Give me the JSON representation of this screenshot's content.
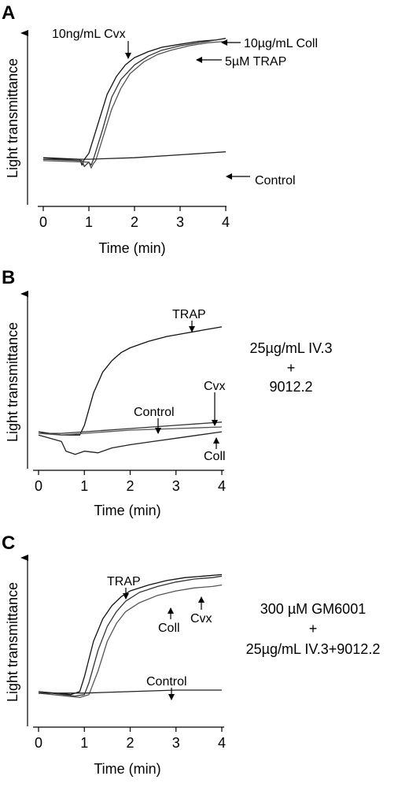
{
  "chart_data": [
    {
      "panel": "A",
      "type": "line",
      "xlabel": "Time (min)",
      "ylabel": "Light transmittance",
      "xlim": [
        0,
        4
      ],
      "xticks": [
        "0",
        "1",
        "2",
        "3",
        "4"
      ],
      "series": [
        {
          "name": "10ng/mL Cvx",
          "x": [
            0,
            0.8,
            0.85,
            0.9,
            1.0,
            1.2,
            1.4,
            1.6,
            1.8,
            2.0,
            2.3,
            2.6,
            3.0,
            3.4,
            3.8,
            4.0
          ],
          "y": [
            0.17,
            0.16,
            0.12,
            0.16,
            0.2,
            0.4,
            0.6,
            0.72,
            0.8,
            0.85,
            0.89,
            0.92,
            0.94,
            0.96,
            0.97,
            0.98
          ]
        },
        {
          "name": "10µg/mL Coll",
          "x": [
            0,
            0.85,
            0.9,
            1.0,
            1.05,
            1.1,
            1.3,
            1.5,
            1.7,
            2.0,
            2.3,
            2.6,
            3.0,
            3.4,
            3.8,
            4.0
          ],
          "y": [
            0.16,
            0.15,
            0.11,
            0.14,
            0.12,
            0.16,
            0.36,
            0.58,
            0.7,
            0.8,
            0.86,
            0.9,
            0.93,
            0.95,
            0.97,
            0.98
          ]
        },
        {
          "name": "5µM TRAP",
          "x": [
            0,
            1.0,
            1.05,
            1.1,
            1.15,
            1.3,
            1.5,
            1.7,
            1.9,
            2.2,
            2.5,
            2.8,
            3.2,
            3.6,
            4.0
          ],
          "y": [
            0.15,
            0.14,
            0.1,
            0.13,
            0.15,
            0.3,
            0.5,
            0.64,
            0.74,
            0.82,
            0.87,
            0.9,
            0.93,
            0.95,
            0.96
          ]
        },
        {
          "name": "Control",
          "x": [
            0,
            1,
            2,
            3,
            4
          ],
          "y": [
            0.16,
            0.16,
            0.17,
            0.19,
            0.21
          ]
        }
      ],
      "annotations": [
        {
          "text": "10ng/mL Cvx",
          "target": "10ng/mL Cvx"
        },
        {
          "text": "10µg/mL Coll",
          "target": "10µg/mL Coll"
        },
        {
          "text": "5µM TRAP",
          "target": "5µM TRAP"
        },
        {
          "text": "Control",
          "target": "Control"
        }
      ]
    },
    {
      "panel": "B",
      "type": "line",
      "xlabel": "Time (min)",
      "ylabel": "Light transmittance",
      "xlim": [
        0,
        4
      ],
      "xticks": [
        "0",
        "1",
        "2",
        "3",
        "4"
      ],
      "side_note": [
        "25µg/mL IV.3",
        "+",
        "9012.2"
      ],
      "series": [
        {
          "name": "TRAP",
          "x": [
            0,
            0.5,
            0.9,
            1.0,
            1.2,
            1.4,
            1.6,
            1.8,
            2.0,
            2.4,
            2.8,
            3.2,
            3.6,
            4.0
          ],
          "y": [
            0.18,
            0.16,
            0.16,
            0.22,
            0.42,
            0.55,
            0.62,
            0.67,
            0.7,
            0.74,
            0.77,
            0.79,
            0.81,
            0.83
          ]
        },
        {
          "name": "Cvx",
          "x": [
            0,
            0.5,
            1,
            2,
            3,
            4
          ],
          "y": [
            0.17,
            0.17,
            0.18,
            0.2,
            0.22,
            0.24
          ]
        },
        {
          "name": "Control",
          "x": [
            0,
            0.5,
            1,
            2,
            3,
            4
          ],
          "y": [
            0.17,
            0.16,
            0.17,
            0.19,
            0.2,
            0.21
          ]
        },
        {
          "name": "Coll",
          "x": [
            0,
            0.5,
            0.6,
            0.8,
            1.0,
            1.3,
            1.6,
            2.0,
            2.5,
            3.0,
            3.5,
            4.0
          ],
          "y": [
            0.16,
            0.12,
            0.06,
            0.04,
            0.06,
            0.05,
            0.08,
            0.1,
            0.12,
            0.14,
            0.16,
            0.18
          ]
        }
      ],
      "annotations": [
        {
          "text": "TRAP",
          "target": "TRAP"
        },
        {
          "text": "Control",
          "target": "Control"
        },
        {
          "text": "Cvx",
          "target": "Cvx"
        },
        {
          "text": "Coll",
          "target": "Coll"
        }
      ]
    },
    {
      "panel": "C",
      "type": "line",
      "xlabel": "Time (min)",
      "ylabel": "Light transmittance",
      "xlim": [
        0,
        4
      ],
      "xticks": [
        "0",
        "1",
        "2",
        "3",
        "4"
      ],
      "side_note": [
        "300 µM GM6001",
        "+",
        "25µg/mL IV.3+9012.2"
      ],
      "series": [
        {
          "name": "TRAP",
          "x": [
            0,
            0.7,
            0.9,
            1.0,
            1.2,
            1.4,
            1.6,
            1.8,
            2.0,
            2.4,
            2.8,
            3.2,
            3.6,
            4.0
          ],
          "y": [
            0.16,
            0.14,
            0.16,
            0.26,
            0.5,
            0.65,
            0.74,
            0.8,
            0.84,
            0.88,
            0.91,
            0.93,
            0.94,
            0.95
          ]
        },
        {
          "name": "Cvx",
          "x": [
            0,
            0.8,
            1.0,
            1.1,
            1.3,
            1.5,
            1.7,
            1.9,
            2.2,
            2.6,
            3.0,
            3.4,
            3.8,
            4.0
          ],
          "y": [
            0.16,
            0.13,
            0.14,
            0.22,
            0.44,
            0.6,
            0.7,
            0.77,
            0.83,
            0.87,
            0.9,
            0.92,
            0.93,
            0.94
          ]
        },
        {
          "name": "Coll",
          "x": [
            0,
            0.9,
            1.1,
            1.3,
            1.5,
            1.7,
            1.9,
            2.2,
            2.6,
            3.0,
            3.4,
            3.8,
            4.0
          ],
          "y": [
            0.15,
            0.12,
            0.14,
            0.3,
            0.5,
            0.62,
            0.7,
            0.76,
            0.81,
            0.84,
            0.86,
            0.87,
            0.88
          ]
        },
        {
          "name": "Control",
          "x": [
            0,
            1,
            2,
            3,
            4
          ],
          "y": [
            0.15,
            0.15,
            0.16,
            0.17,
            0.17
          ]
        }
      ],
      "annotations": [
        {
          "text": "TRAP",
          "target": "TRAP"
        },
        {
          "text": "Coll",
          "target": "Coll"
        },
        {
          "text": "Cvx",
          "target": "Cvx"
        },
        {
          "text": "Control",
          "target": "Control"
        }
      ]
    }
  ]
}
